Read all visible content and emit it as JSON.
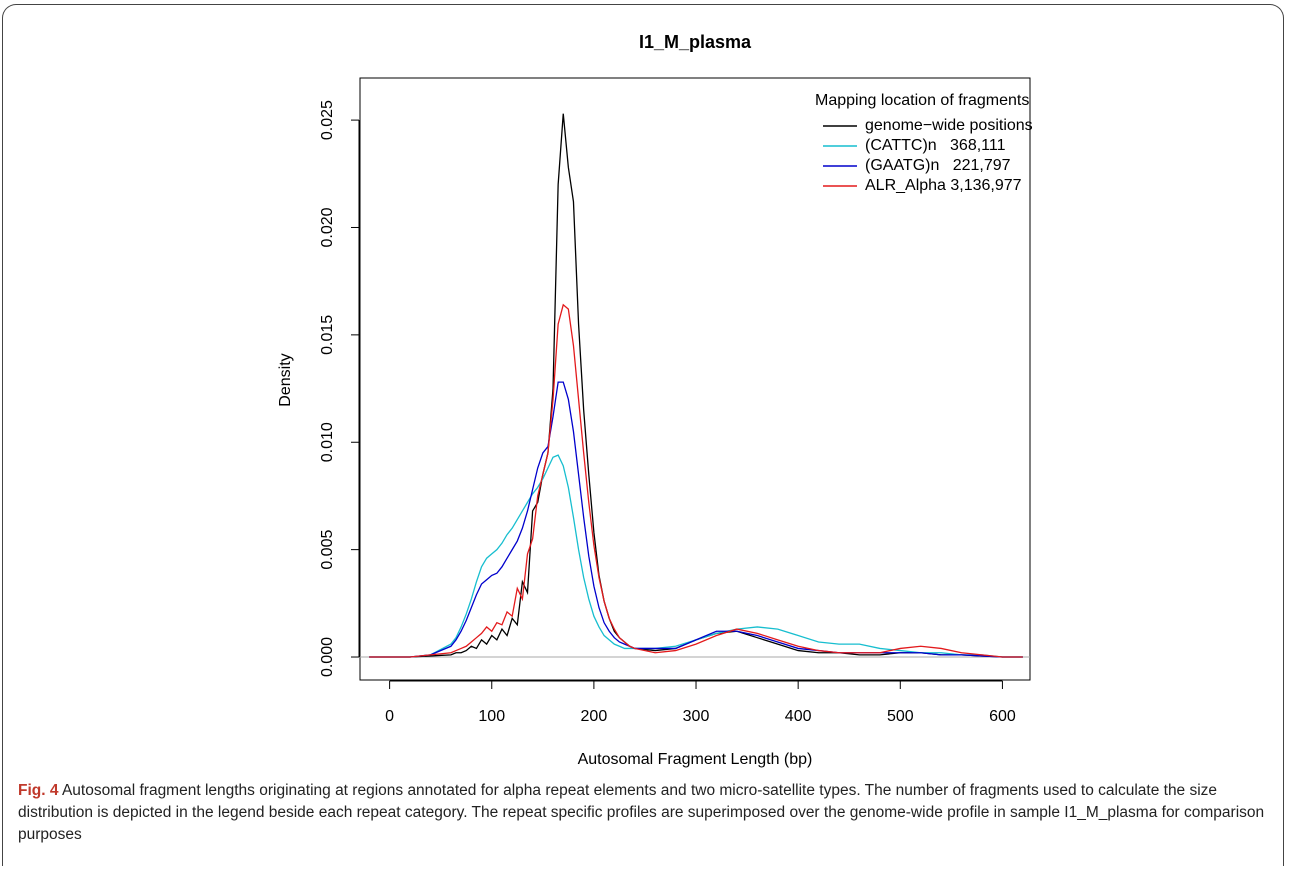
{
  "chart_data": {
    "type": "line",
    "title": "I1_M_plasma",
    "x_label": "Autosomal Fragment Length (bp)",
    "y_label": "Density",
    "legend_title": "Mapping location of fragments",
    "legend": "top-right",
    "x": [
      -20,
      0,
      20,
      40,
      60,
      65,
      70,
      75,
      80,
      85,
      90,
      95,
      100,
      105,
      110,
      115,
      120,
      125,
      130,
      135,
      140,
      145,
      150,
      155,
      160,
      165,
      170,
      175,
      180,
      185,
      190,
      195,
      200,
      205,
      210,
      215,
      220,
      225,
      230,
      235,
      240,
      260,
      280,
      300,
      320,
      340,
      360,
      380,
      400,
      420,
      440,
      460,
      480,
      500,
      520,
      540,
      560,
      580,
      600,
      620
    ],
    "series": [
      {
        "name": "genome−wide positions",
        "color": "#000000",
        "values": [
          0,
          0,
          0,
          5e-05,
          0.0001,
          0.0002,
          0.0002,
          0.0003,
          0.0005,
          0.0004,
          0.0008,
          0.0006,
          0.001,
          0.0008,
          0.0013,
          0.001,
          0.0018,
          0.0015,
          0.0035,
          0.003,
          0.0068,
          0.0072,
          0.0085,
          0.0095,
          0.0125,
          0.022,
          0.0253,
          0.0228,
          0.0212,
          0.0155,
          0.0115,
          0.0085,
          0.0058,
          0.0038,
          0.0026,
          0.0018,
          0.0012,
          0.0009,
          0.0007,
          0.0005,
          0.0004,
          0.0003,
          0.0004,
          0.0008,
          0.0011,
          0.0012,
          0.0009,
          0.0006,
          0.0003,
          0.0002,
          0.0002,
          0.0001,
          0.0001,
          0.0002,
          0.0002,
          0.0001,
          0.0001,
          5e-05,
          0,
          0
        ]
      },
      {
        "name": "(CATTC)n   368,111",
        "color": "#17becf",
        "values": [
          0,
          0,
          0,
          0.0001,
          0.0006,
          0.0009,
          0.0014,
          0.002,
          0.0027,
          0.0035,
          0.0042,
          0.0046,
          0.0048,
          0.005,
          0.0053,
          0.0057,
          0.006,
          0.0064,
          0.0068,
          0.0072,
          0.0076,
          0.0079,
          0.0083,
          0.0088,
          0.0093,
          0.0094,
          0.0089,
          0.0079,
          0.0065,
          0.005,
          0.0037,
          0.0027,
          0.0019,
          0.0014,
          0.001,
          0.0008,
          0.0006,
          0.0005,
          0.0004,
          0.0004,
          0.0004,
          0.0004,
          0.0005,
          0.0008,
          0.0011,
          0.0013,
          0.0014,
          0.0013,
          0.001,
          0.0007,
          0.0006,
          0.0006,
          0.0004,
          0.0003,
          0.0002,
          0.0002,
          0.0001,
          0.0001,
          0,
          0
        ]
      },
      {
        "name": "(GAATG)n   221,797",
        "color": "#0000cc",
        "values": [
          0,
          0,
          0,
          0.0001,
          0.0005,
          0.0008,
          0.0012,
          0.0017,
          0.0023,
          0.0029,
          0.0034,
          0.0036,
          0.0038,
          0.0039,
          0.0042,
          0.0046,
          0.005,
          0.0054,
          0.006,
          0.0068,
          0.0078,
          0.0088,
          0.0095,
          0.0098,
          0.0112,
          0.0128,
          0.0128,
          0.012,
          0.0105,
          0.0085,
          0.0065,
          0.0047,
          0.0033,
          0.0023,
          0.0016,
          0.0012,
          0.0009,
          0.0007,
          0.0006,
          0.0005,
          0.0004,
          0.0004,
          0.0004,
          0.0008,
          0.0012,
          0.0012,
          0.001,
          0.0007,
          0.0004,
          0.0003,
          0.0002,
          0.0002,
          0.0002,
          0.0002,
          0.0002,
          0.0001,
          0.0001,
          5e-05,
          0,
          0
        ]
      },
      {
        "name": "ALR_Alpha 3,136,977",
        "color": "#e31a1c",
        "values": [
          0,
          0,
          0,
          0.0001,
          0.0002,
          0.0003,
          0.0004,
          0.0005,
          0.0007,
          0.0009,
          0.0011,
          0.0014,
          0.0012,
          0.0016,
          0.0015,
          0.0021,
          0.0019,
          0.0032,
          0.0027,
          0.0048,
          0.0055,
          0.0075,
          0.0085,
          0.0095,
          0.012,
          0.0155,
          0.0164,
          0.0162,
          0.0145,
          0.012,
          0.0095,
          0.0072,
          0.0052,
          0.0037,
          0.0026,
          0.0018,
          0.0013,
          0.0009,
          0.0007,
          0.0005,
          0.0004,
          0.0002,
          0.0003,
          0.0006,
          0.001,
          0.0013,
          0.0011,
          0.0008,
          0.0005,
          0.0003,
          0.0002,
          0.0002,
          0.0002,
          0.0004,
          0.0005,
          0.0004,
          0.0002,
          0.0001,
          0,
          0
        ]
      }
    ],
    "xlim": [
      -29,
      627
    ],
    "xticks": [
      0,
      100,
      200,
      300,
      400,
      500,
      600
    ],
    "ylim": [
      -0.00107,
      0.02696
    ],
    "yticks": [
      {
        "value": 0,
        "label": "0.000"
      },
      {
        "value": 0.005,
        "label": "0.005"
      },
      {
        "value": 0.01,
        "label": "0.010"
      },
      {
        "value": 0.015,
        "label": "0.015"
      },
      {
        "value": 0.02,
        "label": "0.020"
      },
      {
        "value": 0.025,
        "label": "0.025"
      }
    ]
  },
  "caption": {
    "label": "Fig. 4",
    "text": "Autosomal fragment lengths originating at regions annotated for alpha repeat elements and two micro-satellite types. The number of fragments used to calculate the size distribution is depicted in the legend beside each repeat category. The repeat specific profiles are superimposed over the genome-wide profile in sample I1_M_plasma for comparison purposes"
  }
}
